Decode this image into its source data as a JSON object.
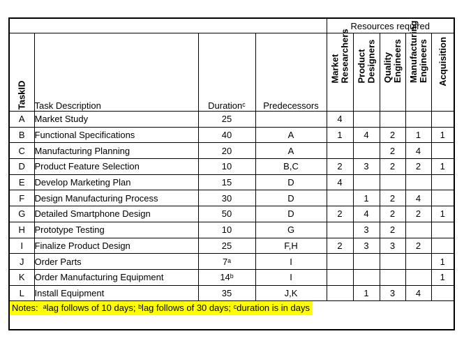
{
  "header": {
    "resources_title": "Resources required",
    "columns": {
      "task_id": "TaskID",
      "task_description": "Task Description",
      "duration": "Durationᶜ",
      "predecessors": "Predecessors"
    },
    "resource_columns": [
      "Market Researchers",
      "Product Designers",
      "Quality Engineers",
      "Manufacturing Engineers",
      "Acquisition"
    ]
  },
  "rows": [
    {
      "id": "A",
      "description": "Market Study",
      "duration": "25",
      "predecessors": "",
      "resources": [
        "4",
        "",
        "",
        "",
        ""
      ]
    },
    {
      "id": "B",
      "description": "Functional Specifications",
      "duration": "40",
      "predecessors": "A",
      "resources": [
        "1",
        "4",
        "2",
        "1",
        "1"
      ]
    },
    {
      "id": "C",
      "description": "Manufacturing Planning",
      "duration": "20",
      "predecessors": "A",
      "resources": [
        "",
        "",
        "2",
        "4",
        ""
      ]
    },
    {
      "id": "D",
      "description": "Product Feature Selection",
      "duration": "10",
      "predecessors": "B,C",
      "resources": [
        "2",
        "3",
        "2",
        "2",
        "1"
      ]
    },
    {
      "id": "E",
      "description": "Develop Marketing Plan",
      "duration": "15",
      "predecessors": "D",
      "resources": [
        "4",
        "",
        "",
        "",
        ""
      ]
    },
    {
      "id": "F",
      "description": "Design Manufacturing Process",
      "duration": "30",
      "predecessors": "D",
      "resources": [
        "",
        "1",
        "2",
        "4",
        ""
      ]
    },
    {
      "id": "G",
      "description": "Detailed Smartphone Design",
      "duration": "50",
      "predecessors": "D",
      "resources": [
        "2",
        "4",
        "2",
        "2",
        "1"
      ]
    },
    {
      "id": "H",
      "description": "Prototype Testing",
      "duration": "10",
      "predecessors": "G",
      "resources": [
        "",
        "3",
        "2",
        "",
        ""
      ]
    },
    {
      "id": "I",
      "description": "Finalize Product Design",
      "duration": "25",
      "predecessors": "F,H",
      "resources": [
        "2",
        "3",
        "3",
        "2",
        ""
      ]
    },
    {
      "id": "J",
      "description": "Order Parts",
      "duration": "7ᵃ",
      "predecessors": "I",
      "resources": [
        "",
        "",
        "",
        "",
        "1"
      ]
    },
    {
      "id": "K",
      "description": "Order Manufacturing Equipment",
      "duration": "14ᵇ",
      "predecessors": "I",
      "resources": [
        "",
        "",
        "",
        "",
        "1"
      ]
    },
    {
      "id": "L",
      "description": "Install Equipment",
      "duration": "35",
      "predecessors": "J,K",
      "resources": [
        "",
        "1",
        "3",
        "4",
        ""
      ]
    }
  ],
  "notes": "Notes:  ᵃlag follows of 10 days; ᵇlag follows of 30 days; ᶜduration is in days",
  "colors": {
    "highlight": "#ffff00",
    "text": "#000000",
    "border": "#000000",
    "background": "#ffffff"
  }
}
